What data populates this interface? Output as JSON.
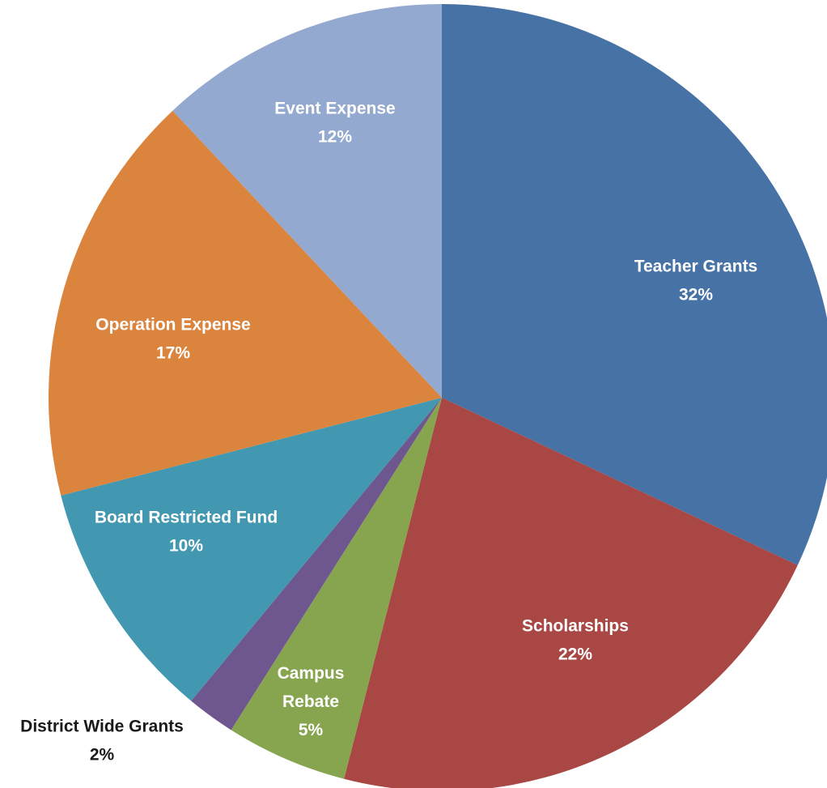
{
  "chart_data": {
    "type": "pie",
    "title": "",
    "slices": [
      {
        "label": "Teacher Grants",
        "value": 32,
        "value_label": "32%",
        "color": "#4672a6"
      },
      {
        "label": "Scholarships",
        "value": 22,
        "value_label": "22%",
        "color": "#a84744"
      },
      {
        "label": "Campus Rebate",
        "value": 5,
        "value_label": "5%",
        "color": "#87a54e"
      },
      {
        "label": "District Wide Grants",
        "value": 2,
        "value_label": "2%",
        "color": "#6e578f"
      },
      {
        "label": "Board Restricted Fund",
        "value": 10,
        "value_label": "10%",
        "color": "#4298b0"
      },
      {
        "label": "Operation Expense",
        "value": 17,
        "value_label": "17%",
        "color": "#db843d"
      },
      {
        "label": "Event Expense",
        "value": 12,
        "value_label": "12%",
        "color": "#93a9cf"
      }
    ],
    "label_color_inside": "#ffffff",
    "label_color_outside": "#1a1a1a"
  }
}
